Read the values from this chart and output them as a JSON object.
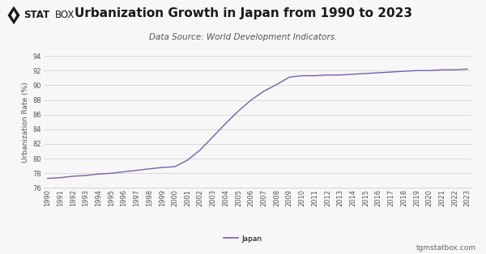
{
  "title": "Urbanization Growth in Japan from 1990 to 2023",
  "subtitle": "Data Source: World Development Indicators.",
  "ylabel": "Urbanization Rate (%)",
  "background_color": "#f7f7f7",
  "line_color": "#7b5ea7",
  "years": [
    1990,
    1991,
    1992,
    1993,
    1994,
    1995,
    1996,
    1997,
    1998,
    1999,
    2000,
    2001,
    2002,
    2003,
    2004,
    2005,
    2006,
    2007,
    2008,
    2009,
    2010,
    2011,
    2012,
    2013,
    2014,
    2015,
    2016,
    2017,
    2018,
    2019,
    2020,
    2021,
    2022,
    2023
  ],
  "values": [
    77.3,
    77.4,
    77.6,
    77.7,
    77.9,
    78.0,
    78.2,
    78.4,
    78.6,
    78.8,
    78.9,
    79.8,
    81.2,
    83.0,
    84.8,
    86.5,
    88.0,
    89.2,
    90.1,
    91.1,
    91.3,
    91.3,
    91.4,
    91.4,
    91.5,
    91.6,
    91.7,
    91.8,
    91.9,
    92.0,
    92.0,
    92.1,
    92.1,
    92.2
  ],
  "ylim": [
    76,
    94
  ],
  "yticks": [
    76,
    78,
    80,
    82,
    84,
    86,
    88,
    90,
    92,
    94
  ],
  "grid_color": "#cccccc",
  "title_fontsize": 11,
  "subtitle_fontsize": 7.5,
  "tick_fontsize": 6,
  "ylabel_fontsize": 6.5,
  "legend_label": "Japan",
  "watermark": "tgmstatbox.com",
  "logo_text": "STATBOX"
}
